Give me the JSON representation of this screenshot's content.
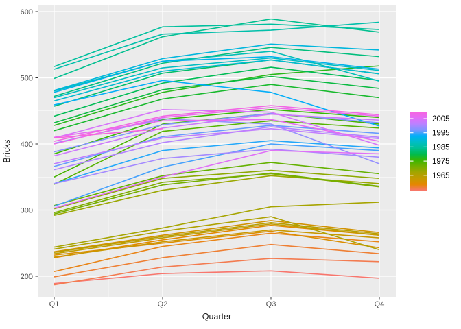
{
  "chart_data": {
    "type": "line",
    "title": "",
    "xlabel": "Quarter",
    "ylabel": "Bricks",
    "x_categories": [
      "Q1",
      "Q2",
      "Q3",
      "Q4"
    ],
    "y_ticks": [
      600,
      500,
      400,
      300,
      200
    ],
    "y_minor_ticks": [
      550,
      450,
      350,
      250
    ],
    "ylim": [
      169,
      609
    ],
    "grid": true,
    "panel_background": "#EBEBEB",
    "gridline_color": "#FFFFFF",
    "tick_label_color": "#4D4D4D",
    "axis_title_color": "#1A1A1A",
    "tick_mark_color": "#333333",
    "legend": {
      "position": "right",
      "style": "colorbar",
      "tick_years": [
        2005,
        1995,
        1985,
        1975,
        1965
      ],
      "label_color": "#000000",
      "tick_dash_color": "#FFFFFF"
    },
    "color_scale": {
      "variable": "Year",
      "min": 1956,
      "max": 2005,
      "palette": [
        "#F8766D",
        "#E58700",
        "#C49A00",
        "#A3A500",
        "#72AF00",
        "#39B600",
        "#00BB4E",
        "#00C096",
        "#00BDC4",
        "#00AFF8",
        "#7E96FF",
        "#BC81FF",
        "#E26EF7",
        "#F763DE"
      ]
    },
    "series": [
      {
        "year": 1956,
        "values": [
          189,
          204,
          208,
          197
        ]
      },
      {
        "year": 1957,
        "values": [
          187,
          214,
          227,
          222
        ]
      },
      {
        "year": 1958,
        "values": [
          199,
          228,
          248,
          234
        ]
      },
      {
        "year": 1959,
        "values": [
          207,
          245,
          265,
          252
        ]
      },
      {
        "year": 1960,
        "values": [
          228,
          255,
          277,
          262
        ]
      },
      {
        "year": 1961,
        "values": [
          232,
          250,
          268,
          243
        ]
      },
      {
        "year": 1962,
        "values": [
          237,
          262,
          284,
          266
        ]
      },
      {
        "year": 1963,
        "values": [
          229,
          252,
          270,
          258
        ]
      },
      {
        "year": 1964,
        "values": [
          234,
          258,
          279,
          262
        ]
      },
      {
        "year": 1965,
        "values": [
          236,
          260,
          281,
          264
        ]
      },
      {
        "year": 1966,
        "values": [
          241,
          268,
          290,
          240
        ]
      },
      {
        "year": 1967,
        "values": [
          244,
          273,
          305,
          312
        ]
      },
      {
        "year": 1968,
        "values": [
          292,
          330,
          352,
          340
        ]
      },
      {
        "year": 1969,
        "values": [
          302,
          348,
          360,
          348
        ]
      },
      {
        "year": 1970,
        "values": [
          296,
          342,
          355,
          335
        ]
      },
      {
        "year": 1971,
        "values": [
          294,
          338,
          356,
          336
        ]
      },
      {
        "year": 1972,
        "values": [
          307,
          352,
          372,
          355
        ]
      },
      {
        "year": 1973,
        "values": [
          339,
          419,
          435,
          424
        ]
      },
      {
        "year": 1974,
        "values": [
          350,
          430,
          446,
          430
        ]
      },
      {
        "year": 1975,
        "values": [
          385,
          437,
          452,
          440
        ]
      },
      {
        "year": 1976,
        "values": [
          428,
          478,
          505,
          518
        ]
      },
      {
        "year": 1977,
        "values": [
          420,
          468,
          490,
          470
        ]
      },
      {
        "year": 1978,
        "values": [
          432,
          482,
          502,
          484
        ]
      },
      {
        "year": 1979,
        "values": [
          442,
          492,
          516,
          496
        ]
      },
      {
        "year": 1980,
        "values": [
          457,
          507,
          527,
          506
        ]
      },
      {
        "year": 1981,
        "values": [
          472,
          522,
          546,
          532
        ]
      },
      {
        "year": 1982,
        "values": [
          499,
          562,
          589,
          569
        ]
      },
      {
        "year": 1983,
        "values": [
          517,
          577,
          581,
          573
        ]
      },
      {
        "year": 1984,
        "values": [
          513,
          566,
          572,
          584
        ]
      },
      {
        "year": 1985,
        "values": [
          480,
          525,
          540,
          495
        ]
      },
      {
        "year": 1986,
        "values": [
          470,
          515,
          530,
          511
        ]
      },
      {
        "year": 1987,
        "values": [
          465,
          510,
          527,
          506
        ]
      },
      {
        "year": 1988,
        "values": [
          481,
          529,
          551,
          542
        ]
      },
      {
        "year": 1989,
        "values": [
          478,
          525,
          532,
          513
        ]
      },
      {
        "year": 1990,
        "values": [
          459,
          496,
          478,
          427
        ]
      },
      {
        "year": 1991,
        "values": [
          340,
          390,
          405,
          394
        ]
      },
      {
        "year": 1992,
        "values": [
          306,
          365,
          400,
          390
        ]
      },
      {
        "year": 1993,
        "values": [
          366,
          411,
          428,
          416
        ]
      },
      {
        "year": 1994,
        "values": [
          388,
          429,
          446,
          432
        ]
      },
      {
        "year": 1995,
        "values": [
          401,
          438,
          430,
          370
        ]
      },
      {
        "year": 1996,
        "values": [
          340,
          378,
          392,
          380
        ]
      },
      {
        "year": 1997,
        "values": [
          361,
          402,
          426,
          410
        ]
      },
      {
        "year": 1998,
        "values": [
          370,
          409,
          423,
          408
        ]
      },
      {
        "year": 1999,
        "values": [
          382,
          424,
          445,
          436
        ]
      },
      {
        "year": 2000,
        "values": [
          409,
          452,
          448,
          398
        ]
      },
      {
        "year": 2001,
        "values": [
          303,
          350,
          390,
          385
        ]
      },
      {
        "year": 2002,
        "values": [
          410,
          435,
          437,
          404
        ]
      },
      {
        "year": 2003,
        "values": [
          400,
          440,
          455,
          442
        ]
      },
      {
        "year": 2004,
        "values": [
          404,
          442,
          458,
          444
        ]
      },
      {
        "year": 2005,
        "values": [
          409,
          423,
          null,
          null
        ]
      }
    ]
  }
}
